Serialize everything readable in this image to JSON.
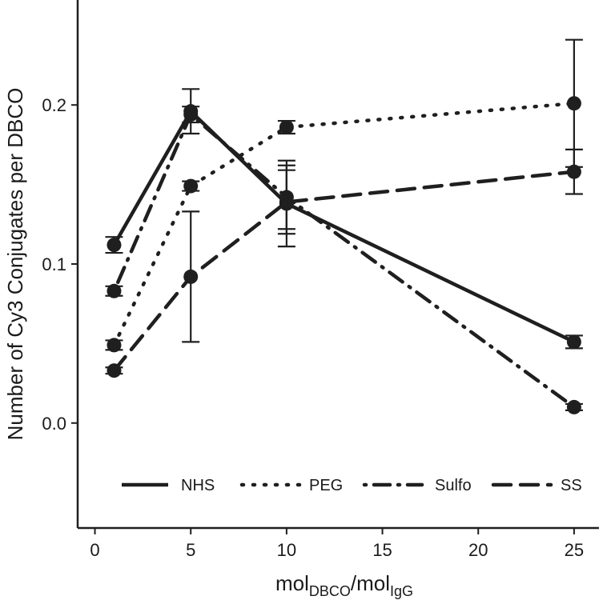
{
  "chart_data": {
    "type": "line",
    "title": "",
    "xlabel_main": "mol",
    "xlabel_sub1": "DBCO",
    "xlabel_sep": "/mol",
    "xlabel_sub2": "IgG",
    "ylabel": "Number of Cy3 Conjugates per DBCO",
    "xlim": [
      -0.9,
      26.3
    ],
    "ylim": [
      -0.066,
      0.266
    ],
    "xticks": [
      0,
      5,
      10,
      15,
      20,
      25
    ],
    "xtick_labels": [
      "0",
      "5",
      "10",
      "15",
      "20",
      "25"
    ],
    "yticks": [
      0.0,
      0.1,
      0.2
    ],
    "ytick_labels": [
      "0.0",
      "0.1",
      "0.2"
    ],
    "x": [
      1,
      5,
      10,
      25
    ],
    "legend_position": "bottom",
    "series": [
      {
        "name": "NHS",
        "dash": "solid",
        "values": [
          0.112,
          0.196,
          0.138,
          0.051
        ],
        "errors": [
          0.005,
          0.014,
          0.027,
          0.004
        ]
      },
      {
        "name": "PEG",
        "dash": "dotted",
        "values": [
          0.049,
          0.149,
          0.186,
          0.201
        ],
        "errors": [
          0.003,
          0.003,
          0.004,
          0.04
        ]
      },
      {
        "name": "Sulfo",
        "dash": "dashdot",
        "values": [
          0.083,
          0.194,
          0.142,
          0.01
        ],
        "errors": [
          0.003,
          0.005,
          0.02,
          0.002
        ]
      },
      {
        "name": "SS",
        "dash": "dashed",
        "values": [
          0.033,
          0.092,
          0.139,
          0.158
        ],
        "errors": [
          0.002,
          0.041,
          0.02,
          0.014
        ]
      }
    ]
  }
}
